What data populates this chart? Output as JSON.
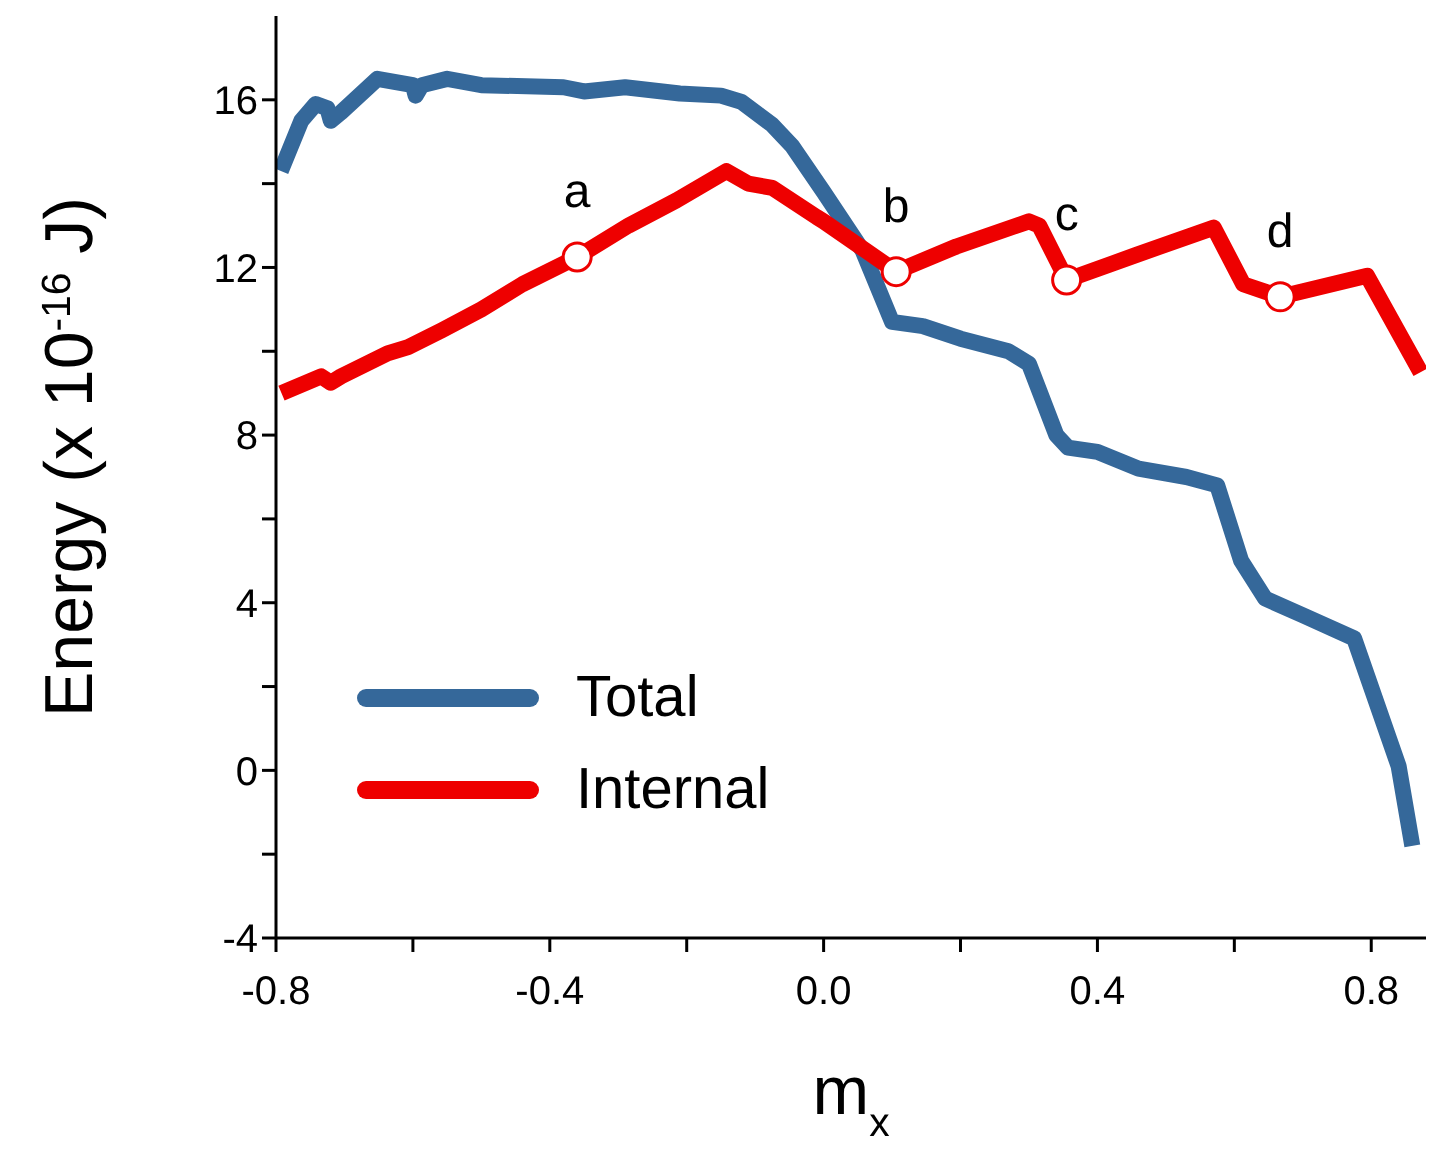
{
  "chart_data": {
    "type": "line",
    "xlabel": "m$_{x}$",
    "ylabel": "Energy (x 10$^{-16}$ J)",
    "xlim": [
      -0.8,
      0.88
    ],
    "ylim": [
      -4,
      18
    ],
    "xticks": [
      -0.8,
      {
        "value": -0.6,
        "label": null
      },
      -0.4,
      {
        "value": -0.2,
        "label": null
      },
      {
        "value": 0,
        "label": "0.0"
      },
      {
        "value": 0.2,
        "label": null
      },
      0.4,
      {
        "value": 0.6,
        "label": null
      },
      0.8
    ],
    "yticks": [
      -4,
      {
        "value": -2,
        "label": null
      },
      0,
      {
        "value": 2,
        "label": null
      },
      4,
      {
        "value": 6,
        "label": null
      },
      8,
      {
        "value": 10,
        "label": null
      },
      12,
      {
        "value": 14,
        "label": null
      },
      16
    ],
    "legend": "bottom left",
    "marker": "none",
    "line_style": "solid",
    "grid": false,
    "series": [
      {
        "name": "Total",
        "color": "#35689a",
        "x": [
          -0.793,
          -0.763,
          -0.742,
          -0.725,
          -0.72,
          -0.705,
          -0.652,
          -0.6,
          -0.596,
          -0.587,
          -0.55,
          -0.5,
          -0.38,
          -0.35,
          -0.29,
          -0.21,
          -0.15,
          -0.12,
          -0.075,
          -0.046,
          0.0,
          0.057,
          0.1,
          0.145,
          0.2,
          0.27,
          0.3,
          0.34,
          0.357,
          0.4,
          0.46,
          0.53,
          0.575,
          0.61,
          0.645,
          0.7,
          0.775,
          0.84,
          0.86
        ],
        "values": [
          14.3,
          15.5,
          15.9,
          15.8,
          15.5,
          15.7,
          16.5,
          16.35,
          16.1,
          16.35,
          16.5,
          16.35,
          16.3,
          16.2,
          16.3,
          16.15,
          16.1,
          15.95,
          15.4,
          14.9,
          13.8,
          12.4,
          10.7,
          10.6,
          10.3,
          10.0,
          9.7,
          8.0,
          7.7,
          7.6,
          7.2,
          7.0,
          6.8,
          5.0,
          4.1,
          3.7,
          3.15,
          0.1,
          -1.8
        ]
      },
      {
        "name": "Internal",
        "color": "#ee0000",
        "x": [
          -0.792,
          -0.734,
          -0.72,
          -0.705,
          -0.637,
          -0.607,
          -0.558,
          -0.5,
          -0.44,
          -0.36,
          -0.285,
          -0.215,
          -0.142,
          -0.11,
          -0.075,
          -0.01,
          0.0,
          0.106,
          0.194,
          0.3,
          0.315,
          0.355,
          0.457,
          0.57,
          0.613,
          0.667,
          0.794,
          0.872
        ],
        "values": [
          9.0,
          9.4,
          9.25,
          9.4,
          9.95,
          10.1,
          10.5,
          11.0,
          11.6,
          12.25,
          13.0,
          13.6,
          14.3,
          14.0,
          13.9,
          13.2,
          13.1,
          11.9,
          12.5,
          13.1,
          13.0,
          11.7,
          12.3,
          12.95,
          11.6,
          11.3,
          11.8,
          9.5
        ]
      }
    ],
    "annotations": [
      {
        "text": "a",
        "x": -0.36,
        "y": 12.25
      },
      {
        "text": "b",
        "x": 0.106,
        "y": 11.9
      },
      {
        "text": "c",
        "x": 0.355,
        "y": 11.7
      },
      {
        "text": "d",
        "x": 0.667,
        "y": 11.3
      }
    ]
  }
}
